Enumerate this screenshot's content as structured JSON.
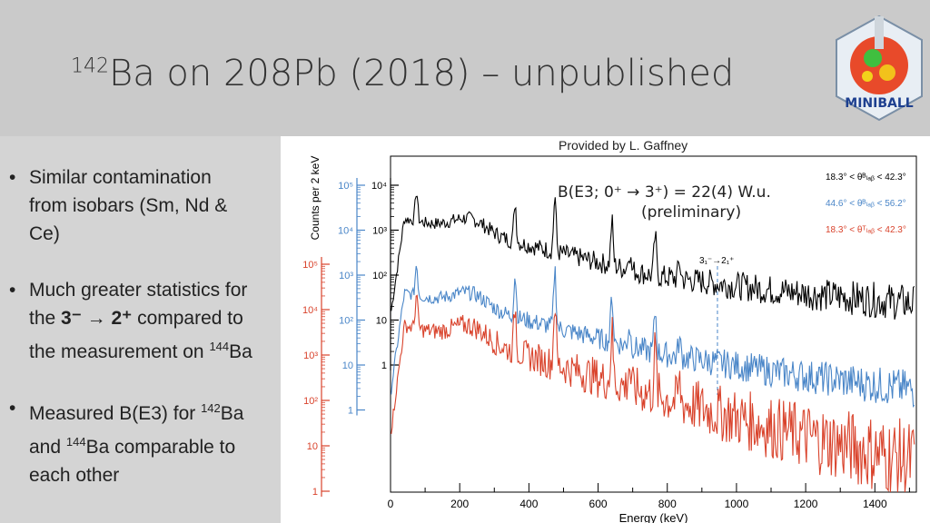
{
  "slide": {
    "title_sup": "142",
    "title_main": "Ba on 208Pb (2018) – unpublished",
    "credit": "Provided by L. Gaffney",
    "logo_text": "MINIBALL"
  },
  "bullets": [
    {
      "line1": "Similar contamination",
      "line2": "from isobars (Sm, Nd &",
      "line3": "Ce)"
    },
    {
      "line1": "Much greater statistics for",
      "pre": "the ",
      "math": "3⁻ → 2⁺",
      "post": " compared to",
      "line3a": "the measurement on ",
      "sup": "144",
      "line3b": "Ba"
    },
    {
      "pre1": "Measured B(E3) for ",
      "sup1": "142",
      "post1": "Ba",
      "pre2": "and ",
      "sup2": "144",
      "post2": "Ba comparable to",
      "line3": "each other"
    }
  ],
  "chart_data": {
    "type": "line",
    "xlabel": "Energy (keV)",
    "ylabel": "Counts per 2 keV",
    "xlim": [
      0,
      1520
    ],
    "x_ticks": [
      "0",
      "200",
      "400",
      "600",
      "800",
      "1000",
      "1200",
      "1400"
    ],
    "black_axis_ticks": [
      "10⁴",
      "10³",
      "10²",
      "10",
      "1"
    ],
    "blue_axis_ticks": [
      "10⁵",
      "10⁴",
      "10³",
      "10²",
      "10",
      "1"
    ],
    "red_axis_ticks": [
      "10⁵",
      "10⁴",
      "10³",
      "10²",
      "10",
      "1"
    ],
    "annotation_main": "B(E3; 0⁺ → 3⁺) = 22(4) W.u.",
    "annotation_sub": "(preliminary)",
    "transition_label": "3₁⁻→2₁⁺",
    "transition_energy": 945,
    "peaks": [
      75,
      360,
      475,
      640,
      690,
      765,
      835
    ],
    "series": [
      {
        "name": "18.3° < θᴮₗₐᵦ < 42.3°",
        "color": "#000000",
        "base_log": [
          3.1,
          2.4,
          1.6,
          1.2,
          0.9
        ]
      },
      {
        "name": "44.6° < θᴮₗₐᵦ < 56.2°",
        "color": "#4a86c8",
        "base_log": [
          3.3,
          2.6,
          1.8,
          1.3,
          0.9
        ]
      },
      {
        "name": "18.3° < θᵀₗₐᵦ < 42.3°",
        "color": "#d9432c",
        "base_log": [
          3.6,
          2.9,
          2.0,
          1.2,
          0.5
        ]
      }
    ],
    "colors": {
      "black": "#000000",
      "blue": "#4a86c8",
      "red": "#d9432c"
    }
  }
}
